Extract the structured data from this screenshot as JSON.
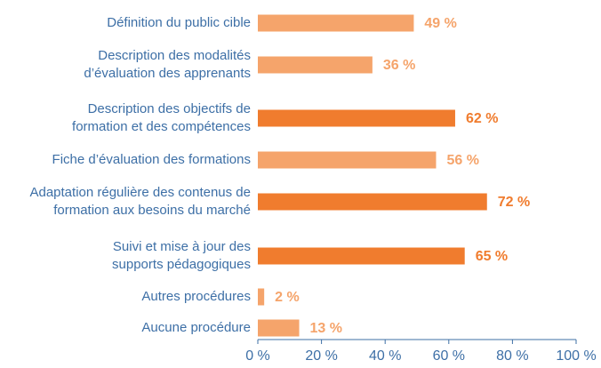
{
  "chart_data": {
    "type": "bar",
    "orientation": "horizontal",
    "categories": [
      "Définition du public cible",
      "Description des modalités\nd’évaluation des apprenants",
      "Description des objectifs de\nformation et des compétences",
      "Fiche d’évaluation des formations",
      "Adaptation régulière des contenus de\nformation aux besoins du marché",
      "Suivi et mise à jour des\nsupports pédagogiques",
      "Autres procédures",
      "Aucune procédure"
    ],
    "values": [
      49,
      36,
      62,
      56,
      72,
      65,
      2,
      13
    ],
    "value_labels": [
      "49 %",
      "36 %",
      "62 %",
      "56 %",
      "72 %",
      "65 %",
      "2 %",
      "13 %"
    ],
    "colors": [
      "#f5a46b",
      "#f5a46b",
      "#f07c2e",
      "#f5a46b",
      "#f07c2e",
      "#f07c2e",
      "#f5a46b",
      "#f5a46b"
    ],
    "xlim": [
      0,
      100
    ],
    "xticks": [
      {
        "value": 0,
        "label": "0 %"
      },
      {
        "value": 20,
        "label": "20 %"
      },
      {
        "value": 40,
        "label": "40 %"
      },
      {
        "value": 60,
        "label": "60 %"
      },
      {
        "value": 80,
        "label": "80 %"
      },
      {
        "value": 100,
        "label": "100 %"
      }
    ]
  }
}
